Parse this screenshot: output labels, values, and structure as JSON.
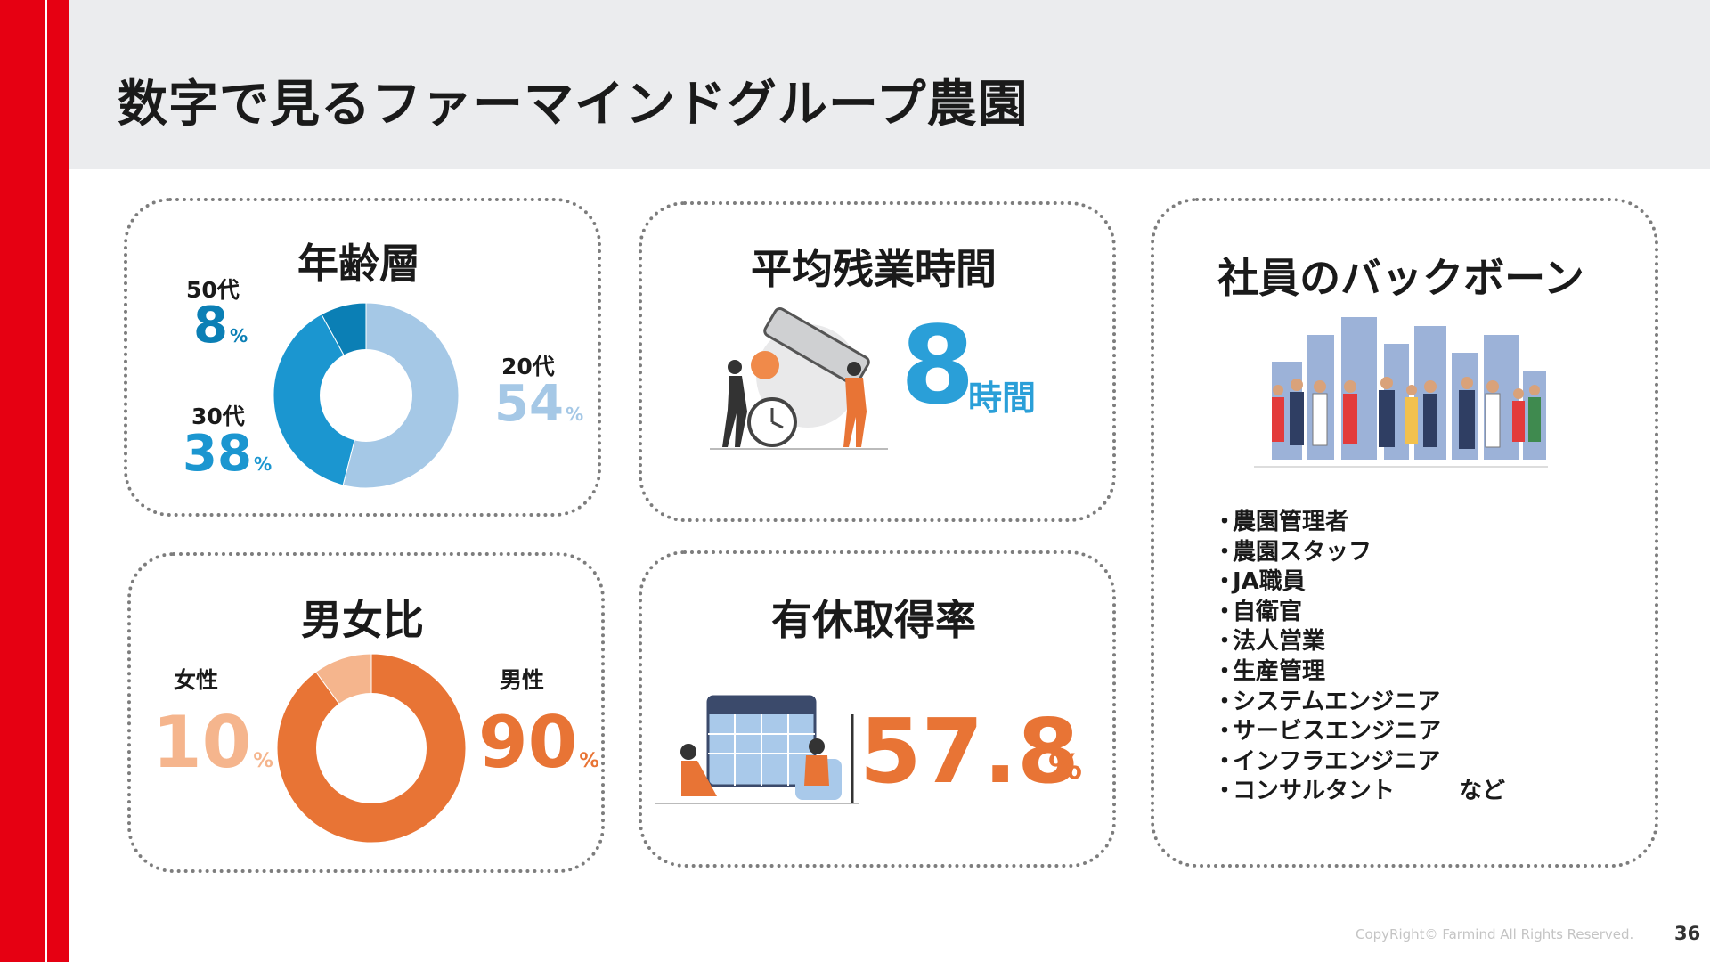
{
  "title": "数字で見るファーマインドグループ農園",
  "age": {
    "title": "年齢層",
    "segments": [
      {
        "label": "20代",
        "value": "54",
        "unit": "%",
        "color": "#a5c8e6"
      },
      {
        "label": "30代",
        "value": "38",
        "unit": "%",
        "color": "#1b96d0"
      },
      {
        "label": "50代",
        "value": "8",
        "unit": "%",
        "color": "#0b7fb5"
      }
    ]
  },
  "overtime": {
    "title": "平均残業時間",
    "value": "8",
    "unit": "時間",
    "color": "#2a9fd8"
  },
  "gender": {
    "title": "男女比",
    "segments": [
      {
        "label": "男性",
        "value": "90",
        "unit": "%",
        "color": "#e87435"
      },
      {
        "label": "女性",
        "value": "10",
        "unit": "%",
        "color": "#f5b58d"
      }
    ]
  },
  "leave": {
    "title": "有休取得率",
    "value": "57.8",
    "unit": "%",
    "color": "#e87435"
  },
  "background": {
    "title": "社員のバックボーン",
    "bullet": "・",
    "items": [
      "農園管理者",
      "農園スタッフ",
      "JA職員",
      "自衛官",
      "法人営業",
      "生産管理",
      "システムエンジニア",
      "サービスエンジニア",
      "インフラエンジニア",
      "コンサルタント"
    ],
    "suffix": "など"
  },
  "footer": {
    "copyright": "CopyRight© Farmind All Rights Reserved.",
    "page": "36"
  },
  "colors": {
    "accent_red": "#e60012",
    "header_bg": "#ebecee",
    "blue": "#2a9fd8",
    "orange": "#e87435"
  }
}
